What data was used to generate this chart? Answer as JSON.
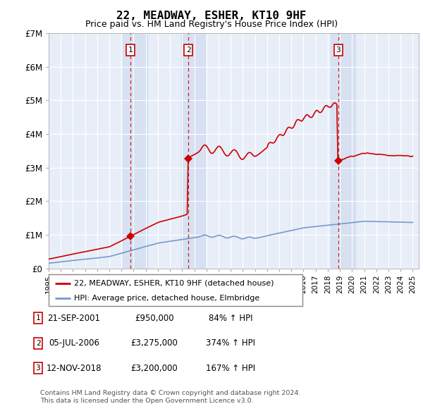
{
  "title": "22, MEADWAY, ESHER, KT10 9HF",
  "subtitle": "Price paid vs. HM Land Registry's House Price Index (HPI)",
  "footer_line1": "Contains HM Land Registry data © Crown copyright and database right 2024.",
  "footer_line2": "This data is licensed under the Open Government Licence v3.0.",
  "legend_entry1": "22, MEADWAY, ESHER, KT10 9HF (detached house)",
  "legend_entry2": "HPI: Average price, detached house, Elmbridge",
  "table_rows": [
    {
      "num": "1",
      "date": "21-SEP-2001",
      "price": "£950,000",
      "hpi": "84% ↑ HPI"
    },
    {
      "num": "2",
      "date": "05-JUL-2006",
      "price": "£3,275,000",
      "hpi": "374% ↑ HPI"
    },
    {
      "num": "3",
      "date": "12-NOV-2018",
      "price": "£3,200,000",
      "hpi": "167% ↑ HPI"
    }
  ],
  "sale_prices": [
    950000,
    3275000,
    3200000
  ],
  "sale_labels": [
    "1",
    "2",
    "3"
  ],
  "hpi_color": "#7799cc",
  "price_color": "#cc0000",
  "background_color": "#e8eef8",
  "shade_color": "#d0dcf0",
  "ylim": [
    0,
    7000000
  ],
  "ytick_labels": [
    "£0",
    "£1M",
    "£2M",
    "£3M",
    "£4M",
    "£5M",
    "£6M",
    "£7M"
  ]
}
